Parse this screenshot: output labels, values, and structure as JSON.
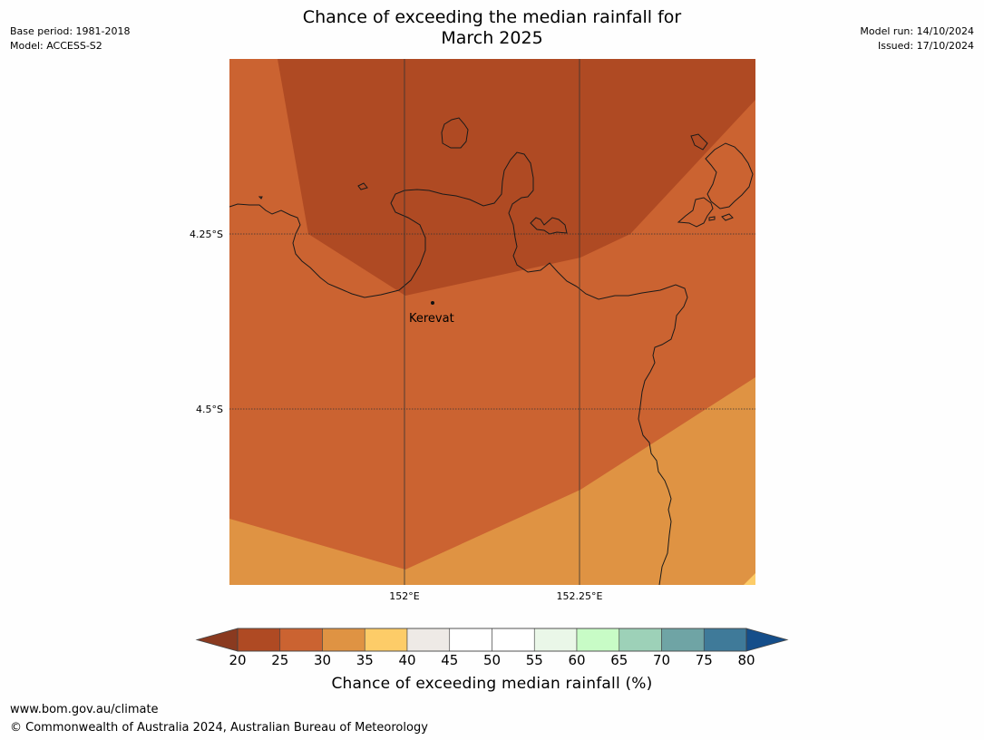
{
  "header": {
    "title_line1": "Chance of exceeding the median rainfall for",
    "title_line2": "March 2025",
    "base_period": "Base period: 1981-2018",
    "model": "Model: ACCESS-S2",
    "model_run": "Model run: 14/10/2024",
    "issued": "Issued: 17/10/2024"
  },
  "map": {
    "lat_labels": [
      "4.25°S",
      "4.5°S"
    ],
    "lon_labels": [
      "152°E",
      "152.25°E"
    ],
    "place": {
      "name": "Kerevat"
    },
    "category_colors": {
      "20-25": "#af4a23",
      "25-30": "#cb6331",
      "30-35": "#df9343",
      "35-40": "#fdcc68"
    }
  },
  "colorbar": {
    "title": "Chance of exceeding median rainfall (%)",
    "ticks": [
      "20",
      "25",
      "30",
      "35",
      "40",
      "45",
      "50",
      "55",
      "60",
      "65",
      "70",
      "75",
      "80"
    ],
    "colors": [
      "#af4a23",
      "#cb6331",
      "#df9343",
      "#fdcc68",
      "#eeeae6",
      "#ffffff",
      "#ffffff",
      "#eaf7e8",
      "#c8fcc6",
      "#9dd1b8",
      "#6fa4a5",
      "#3f7a99"
    ],
    "under_color": "#8a3a20",
    "over_color": "#154e8a"
  },
  "footer": {
    "url": "www.bom.gov.au/climate",
    "copyright": "© Commonwealth of Australia 2024, Australian Bureau of Meteorology"
  }
}
